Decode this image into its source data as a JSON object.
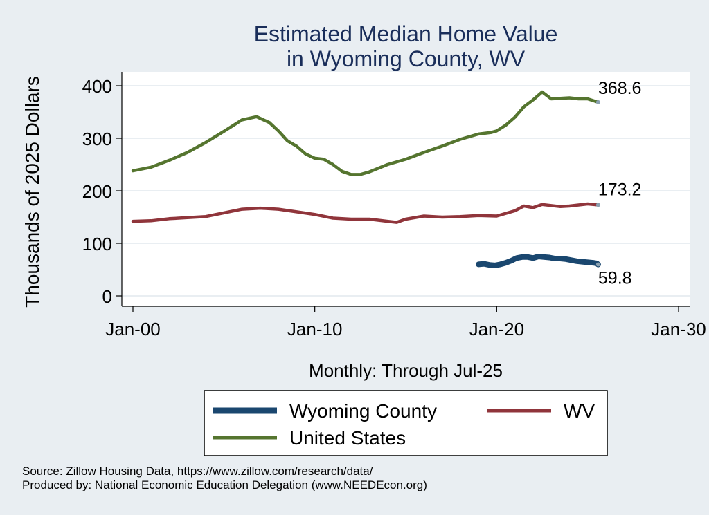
{
  "chart_data": {
    "type": "line",
    "title": [
      "Estimated Median Home Value",
      "in Wyoming County, WV"
    ],
    "ylabel": "Thousands of 2025 Dollars",
    "xlabel": "Monthly: Through Jul-25",
    "ylim": [
      0,
      400
    ],
    "yticks": [
      0,
      100,
      200,
      300,
      400
    ],
    "xlim": [
      2000.0,
      2030.0
    ],
    "xticks": [
      {
        "value": 2000,
        "label": "Jan-00"
      },
      {
        "value": 2010,
        "label": "Jan-10"
      },
      {
        "value": 2020,
        "label": "Jan-20"
      },
      {
        "value": 2030,
        "label": "Jan-30"
      }
    ],
    "grid": true,
    "legend_position": "bottom",
    "series": [
      {
        "name": "Wyoming County",
        "color": "#1a476f",
        "end_label": "59.8",
        "points": [
          [
            2019.0,
            60
          ],
          [
            2019.3,
            61
          ],
          [
            2019.6,
            59
          ],
          [
            2019.9,
            58
          ],
          [
            2020.2,
            60
          ],
          [
            2020.5,
            63
          ],
          [
            2020.8,
            67
          ],
          [
            2021.1,
            72
          ],
          [
            2021.4,
            74
          ],
          [
            2021.7,
            74
          ],
          [
            2022.0,
            72
          ],
          [
            2022.3,
            75
          ],
          [
            2022.6,
            74
          ],
          [
            2022.9,
            73
          ],
          [
            2023.2,
            71
          ],
          [
            2023.5,
            71
          ],
          [
            2023.8,
            70
          ],
          [
            2024.1,
            68
          ],
          [
            2024.4,
            66
          ],
          [
            2024.7,
            65
          ],
          [
            2025.0,
            64
          ],
          [
            2025.3,
            63
          ],
          [
            2025.5,
            62
          ],
          [
            2025.58,
            59.8
          ]
        ]
      },
      {
        "name": "WV",
        "color": "#90353b",
        "end_label": "173.2",
        "points": [
          [
            2000.0,
            142
          ],
          [
            2001.0,
            143
          ],
          [
            2002.0,
            147
          ],
          [
            2003.0,
            149
          ],
          [
            2004.0,
            151
          ],
          [
            2005.0,
            158
          ],
          [
            2006.0,
            165
          ],
          [
            2007.0,
            167
          ],
          [
            2008.0,
            165
          ],
          [
            2009.0,
            160
          ],
          [
            2010.0,
            155
          ],
          [
            2011.0,
            148
          ],
          [
            2012.0,
            146
          ],
          [
            2013.0,
            146
          ],
          [
            2014.0,
            142
          ],
          [
            2014.5,
            140
          ],
          [
            2015.0,
            146
          ],
          [
            2016.0,
            152
          ],
          [
            2017.0,
            150
          ],
          [
            2018.0,
            151
          ],
          [
            2019.0,
            153
          ],
          [
            2020.0,
            152
          ],
          [
            2021.0,
            162
          ],
          [
            2021.5,
            171
          ],
          [
            2022.0,
            168
          ],
          [
            2022.5,
            174
          ],
          [
            2023.0,
            172
          ],
          [
            2023.5,
            170
          ],
          [
            2024.0,
            171
          ],
          [
            2025.0,
            175
          ],
          [
            2025.58,
            173.2
          ]
        ]
      },
      {
        "name": "United States",
        "color": "#55752f",
        "end_label": "368.6",
        "points": [
          [
            2000.0,
            238
          ],
          [
            2001.0,
            245
          ],
          [
            2002.0,
            258
          ],
          [
            2003.0,
            273
          ],
          [
            2004.0,
            292
          ],
          [
            2005.0,
            313
          ],
          [
            2006.0,
            335
          ],
          [
            2006.8,
            341
          ],
          [
            2007.5,
            330
          ],
          [
            2008.0,
            314
          ],
          [
            2008.5,
            295
          ],
          [
            2009.0,
            285
          ],
          [
            2009.5,
            270
          ],
          [
            2010.0,
            262
          ],
          [
            2010.5,
            260
          ],
          [
            2011.0,
            250
          ],
          [
            2011.5,
            237
          ],
          [
            2012.0,
            231
          ],
          [
            2012.5,
            231
          ],
          [
            2013.0,
            236
          ],
          [
            2014.0,
            250
          ],
          [
            2015.0,
            260
          ],
          [
            2016.0,
            273
          ],
          [
            2017.0,
            285
          ],
          [
            2018.0,
            298
          ],
          [
            2019.0,
            308
          ],
          [
            2019.7,
            311
          ],
          [
            2020.0,
            314
          ],
          [
            2020.5,
            325
          ],
          [
            2021.0,
            340
          ],
          [
            2021.5,
            360
          ],
          [
            2022.0,
            373
          ],
          [
            2022.5,
            388
          ],
          [
            2023.0,
            375
          ],
          [
            2023.5,
            376
          ],
          [
            2024.0,
            377
          ],
          [
            2024.5,
            375
          ],
          [
            2025.0,
            375
          ],
          [
            2025.58,
            368.6
          ]
        ]
      }
    ]
  },
  "footer": {
    "source": "Source: Zillow Housing Data, https://www.zillow.com/research/data/",
    "produced": "Produced by: National Economic Education Delegation (www.NEEDEcon.org)"
  }
}
